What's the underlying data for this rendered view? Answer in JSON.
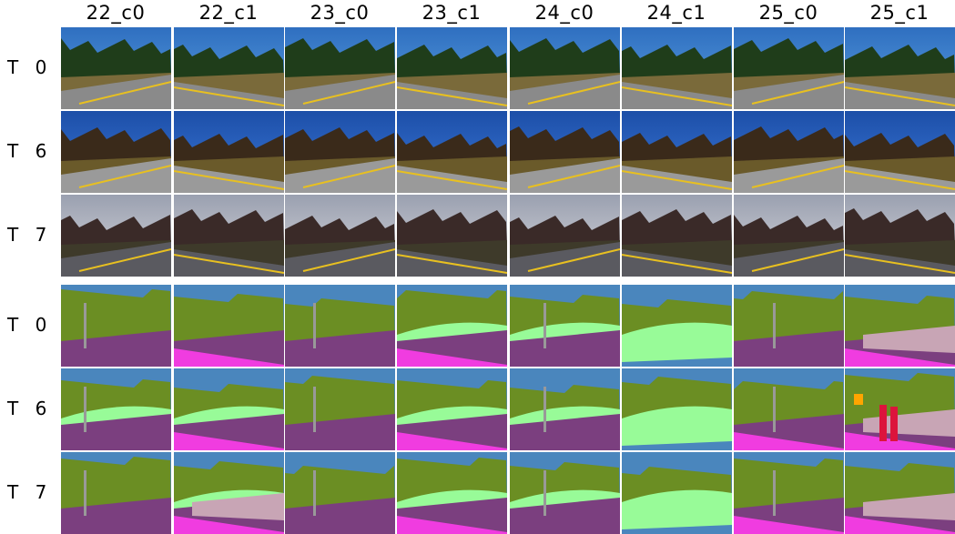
{
  "columns": [
    "22_c0",
    "22_c1",
    "23_c0",
    "23_c1",
    "24_c0",
    "24_c1",
    "25_c0",
    "25_c1"
  ],
  "rows": {
    "photo": [
      "T 0",
      "T 6",
      "T 7"
    ],
    "segmentation": [
      "T 0",
      "T 6",
      "T 7"
    ]
  },
  "colors": {
    "sky": "#4a86bd",
    "vegetation": "#6b8e23",
    "road": "#7b3f7f",
    "sidewalk": "#f03ce0",
    "terrain": "#98fb98",
    "building": "#c8a5b5",
    "pole": "#999999",
    "person": "#dc143c",
    "sign": "#ffa500"
  }
}
